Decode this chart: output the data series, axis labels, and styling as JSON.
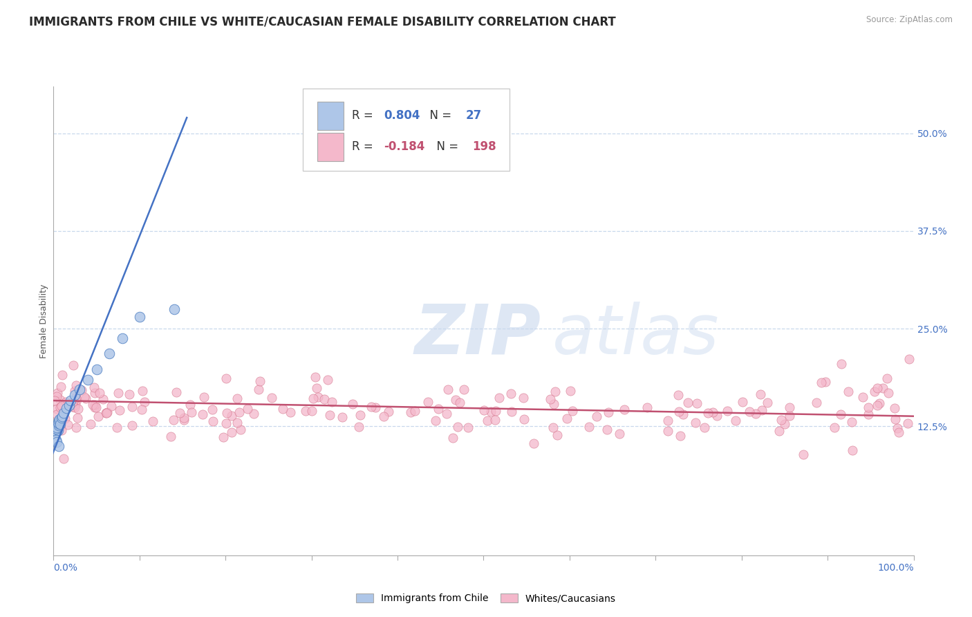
{
  "title": "IMMIGRANTS FROM CHILE VS WHITE/CAUCASIAN FEMALE DISABILITY CORRELATION CHART",
  "source": "Source: ZipAtlas.com",
  "ylabel": "Female Disability",
  "xlim": [
    0.0,
    1.0
  ],
  "ylim": [
    -0.04,
    0.56
  ],
  "yticks": [
    0.125,
    0.25,
    0.375,
    0.5
  ],
  "ytick_labels": [
    "12.5%",
    "25.0%",
    "37.5%",
    "50.0%"
  ],
  "xticks": [
    0.0,
    0.1,
    0.2,
    0.3,
    0.4,
    0.5,
    0.6,
    0.7,
    0.8,
    0.9,
    1.0
  ],
  "blue_R": 0.804,
  "blue_N": 27,
  "pink_R": -0.184,
  "pink_N": 198,
  "blue_color": "#aec6e8",
  "blue_edge_color": "#5585c5",
  "blue_line_color": "#4472c4",
  "pink_color": "#f4b8cb",
  "pink_edge_color": "#d4748c",
  "pink_line_color": "#c05070",
  "legend_label_blue": "Immigrants from Chile",
  "legend_label_pink": "Whites/Caucasians",
  "title_fontsize": 12,
  "axis_label_fontsize": 9,
  "tick_fontsize": 10,
  "background_color": "#ffffff",
  "grid_color": "#c8d8ec",
  "watermark_zip": "ZIP",
  "watermark_atlas": "atlas",
  "blue_scatter_x": [
    0.004,
    0.005,
    0.003,
    0.004,
    0.006,
    0.007,
    0.005,
    0.006,
    0.007,
    0.008,
    0.009,
    0.01,
    0.012,
    0.015,
    0.018,
    0.02,
    0.025,
    0.03,
    0.04,
    0.05,
    0.065,
    0.08,
    0.1,
    0.14,
    0.003,
    0.004,
    0.006
  ],
  "blue_scatter_y": [
    0.118,
    0.12,
    0.122,
    0.124,
    0.126,
    0.128,
    0.13,
    0.132,
    0.134,
    0.128,
    0.136,
    0.138,
    0.142,
    0.148,
    0.152,
    0.158,
    0.165,
    0.172,
    0.185,
    0.198,
    0.218,
    0.238,
    0.265,
    0.275,
    0.108,
    0.105,
    0.1
  ],
  "blue_trend_x": [
    -0.01,
    0.155
  ],
  "blue_trend_y": [
    0.065,
    0.52
  ],
  "pink_trend_x": [
    0.0,
    1.0
  ],
  "pink_trend_y": [
    0.158,
    0.138
  ]
}
